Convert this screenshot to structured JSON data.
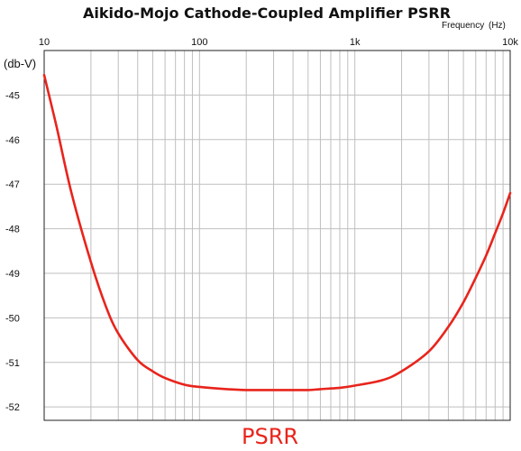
{
  "chart_data": {
    "type": "line",
    "title": "Aikido-Mojo Cathode-Coupled Amplifier PSRR",
    "xlabel": "Frequency",
    "xunit": "(Hz)",
    "ylabel": "(db-V)",
    "xscale": "log",
    "xlim": [
      10,
      10000
    ],
    "ylim": [
      -52.3,
      -44
    ],
    "x_tick_labels": [
      "10",
      "100",
      "1k",
      "10k"
    ],
    "y_ticks": [
      -45,
      -46,
      -47,
      -48,
      -49,
      -50,
      -51,
      -52
    ],
    "grid": true,
    "series": [
      {
        "name": "PSRR",
        "color": "#e8241c",
        "x": [
          10,
          12,
          15,
          20,
          25,
          30,
          40,
          50,
          60,
          80,
          100,
          150,
          200,
          300,
          400,
          500,
          600,
          800,
          1000,
          1500,
          2000,
          3000,
          4000,
          5000,
          6000,
          7000,
          8000,
          9000,
          10000
        ],
        "y": [
          -44.55,
          -45.7,
          -47.2,
          -48.75,
          -49.75,
          -50.35,
          -50.95,
          -51.2,
          -51.35,
          -51.5,
          -51.55,
          -51.6,
          -51.62,
          -51.62,
          -51.62,
          -51.62,
          -51.6,
          -51.57,
          -51.52,
          -51.4,
          -51.2,
          -50.75,
          -50.2,
          -49.65,
          -49.1,
          -48.6,
          -48.1,
          -47.65,
          -47.2
        ]
      }
    ],
    "legend_position": "bottom-left"
  },
  "colors": {
    "grid": "#bfbfbf",
    "axes": "#222222",
    "series": "#e8241c"
  }
}
